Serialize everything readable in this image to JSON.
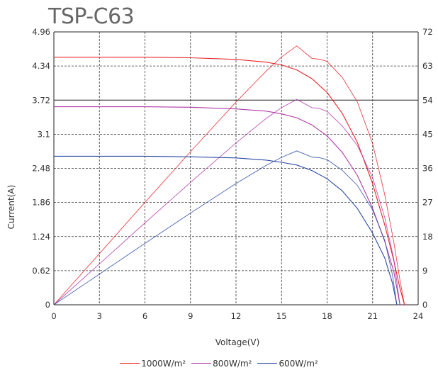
{
  "chart_data": {
    "type": "line",
    "title": "TSP-C63",
    "xlabel": "Voltage(V)",
    "ylabel": "Current(A)",
    "xlim": [
      0,
      24
    ],
    "ylim": [
      0,
      4.96
    ],
    "y2lim": [
      0,
      72
    ],
    "x_ticks": [
      "0",
      "3",
      "6",
      "9",
      "12",
      "15",
      "18",
      "21",
      "24"
    ],
    "y_ticks": [
      "0",
      "0.62",
      "1.24",
      "1.86",
      "2.48",
      "3.1",
      "3.72",
      "4.34",
      "4.96"
    ],
    "y2_ticks": [
      "0",
      "9",
      "18",
      "27",
      "36",
      "45",
      "54",
      "63",
      "72"
    ],
    "grid": true,
    "legend_position": "bottom",
    "series": [
      {
        "name": "1000W/m²",
        "color": "#e8252a",
        "iv_curve": {
          "x": [
            0,
            3,
            6,
            9,
            12,
            14,
            15,
            16,
            17,
            18,
            19,
            20,
            21,
            21.8,
            22.4,
            22.8,
            23.1
          ],
          "y": [
            4.5,
            4.5,
            4.5,
            4.49,
            4.46,
            4.41,
            4.36,
            4.27,
            4.11,
            3.86,
            3.48,
            2.95,
            2.2,
            1.45,
            0.8,
            0.3,
            0
          ]
        },
        "pv_curve": {
          "x": [
            0,
            3,
            6,
            9,
            12,
            14,
            15,
            16,
            17,
            17.5,
            18,
            19,
            20,
            21,
            21.8,
            22.4,
            22.8,
            23.1
          ],
          "y": [
            0,
            13.5,
            27,
            40.4,
            53.5,
            61.7,
            65.4,
            68.3,
            65.0,
            64.8,
            64.2,
            60.0,
            53.5,
            42.5,
            29.0,
            16.5,
            6.5,
            0
          ]
        }
      },
      {
        "name": "800W/m²",
        "color": "#b03aa8",
        "iv_curve": {
          "x": [
            0,
            3,
            6,
            9,
            12,
            14,
            15,
            16,
            17,
            18,
            19,
            20,
            21,
            21.8,
            22.4,
            22.8
          ],
          "y": [
            3.6,
            3.6,
            3.6,
            3.59,
            3.56,
            3.52,
            3.47,
            3.4,
            3.27,
            3.07,
            2.77,
            2.35,
            1.75,
            1.15,
            0.6,
            0
          ]
        },
        "pv_curve": {
          "x": [
            0,
            3,
            6,
            9,
            12,
            14,
            15,
            16,
            17,
            17.5,
            18,
            19,
            20,
            21,
            21.8,
            22.4,
            22.8
          ],
          "y": [
            0,
            10.8,
            21.6,
            32.3,
            42.7,
            49.2,
            52.0,
            54.2,
            52.0,
            51.8,
            51.0,
            47.2,
            42.0,
            33.5,
            23.0,
            12.0,
            0
          ]
        }
      },
      {
        "name": "600W/m²",
        "color": "#2b4aa3",
        "iv_curve": {
          "x": [
            0,
            3,
            6,
            9,
            12,
            14,
            15,
            16,
            17,
            18,
            19,
            20,
            21,
            21.8,
            22.3,
            22.6
          ],
          "y": [
            2.7,
            2.7,
            2.7,
            2.69,
            2.67,
            2.63,
            2.59,
            2.54,
            2.44,
            2.29,
            2.07,
            1.75,
            1.3,
            0.85,
            0.4,
            0
          ]
        },
        "pv_curve": {
          "x": [
            0,
            3,
            6,
            9,
            12,
            14,
            15,
            16,
            17,
            17.5,
            18,
            19,
            20,
            21,
            21.8,
            22.3,
            22.6
          ],
          "y": [
            0,
            8.1,
            16.2,
            24.2,
            32.0,
            36.8,
            38.9,
            40.6,
            39.0,
            38.8,
            38.3,
            35.5,
            31.5,
            25.0,
            17.0,
            8.0,
            0
          ]
        }
      }
    ]
  }
}
